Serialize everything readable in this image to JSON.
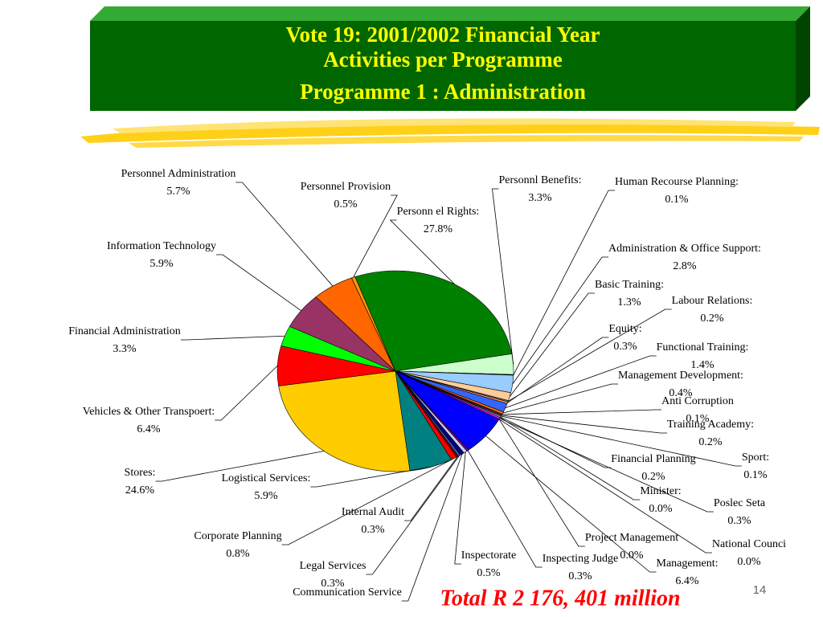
{
  "chart_data": {
    "type": "pie",
    "title_lines": [
      "Vote 19: 2001/2002 Financial Year",
      "Activities per Programme",
      "Programme 1 : Administration"
    ],
    "annotation": "Total R 2 176, 401 million",
    "page_number": "14",
    "categories": [
      "Personn el Rights:",
      "Personnl Benefits:",
      "Human Recourse Planning:",
      "Administration & Office Support:",
      "Basic Training:",
      "Labour Relations:",
      "Equity:",
      "Functional Training:",
      "Management Development:",
      "Anti Corruption",
      "Training Academy:",
      "Sport:",
      "Financial Planning",
      "Minister:",
      "Poslec Seta",
      "National Counci",
      "Project Management",
      "Management:",
      "Inspecting Judge",
      "Inspectorate",
      "Communication Service",
      "Legal Services",
      "Internal Audit",
      "Corporate Planning",
      "Logistical Services:",
      "Stores:",
      "Vehicles & Other Transpoert:",
      "Financial Administration",
      "Information Technology",
      "Personnel Administration",
      "Personnel Provision"
    ],
    "values": [
      27.8,
      3.3,
      0.1,
      2.8,
      1.3,
      0.2,
      0.3,
      1.4,
      0.4,
      0.1,
      0.2,
      0.1,
      0.2,
      0.0,
      0.3,
      0.0,
      0.0,
      6.4,
      0.3,
      0.5,
      0.6,
      0.3,
      0.3,
      0.8,
      5.9,
      24.6,
      6.4,
      3.3,
      5.9,
      5.7,
      0.5
    ],
    "value_labels": [
      "27.8%",
      "3.3%",
      "0.1%",
      "2.8%",
      "1.3%",
      "0.2%",
      "0.3%",
      "1.4%",
      "0.4%",
      "0.1%",
      "0.2%",
      "0.1%",
      "0.2%",
      "0.0%",
      "0.3%",
      "0.0%",
      "0.0%",
      "6.4%",
      "0.3%",
      "0.5%",
      null,
      "0.3%",
      "0.3%",
      "0.8%",
      "5.9%",
      "24.6%",
      "6.4%",
      "3.3%",
      "5.9%",
      "5.7%",
      "0.5%"
    ],
    "colors": [
      "#008000",
      "#ccffcc",
      "#003300",
      "#99ccff",
      "#ffcc99",
      "#808080",
      "#ff9966",
      "#3366ff",
      "#ff6600",
      "#339966",
      "#993366",
      "#ccffff",
      "#99ccff",
      "#000080",
      "#ff00ff",
      "#ffff00",
      "#00ffff",
      "#0000ff",
      "#800080",
      "#ccccff",
      "#000080",
      "#3366cc",
      "#800000",
      "#ff0000",
      "#008080",
      "#ffcc00",
      "#ff0000",
      "#00ff00",
      "#993366",
      "#ff6600",
      "#ff9900"
    ]
  }
}
